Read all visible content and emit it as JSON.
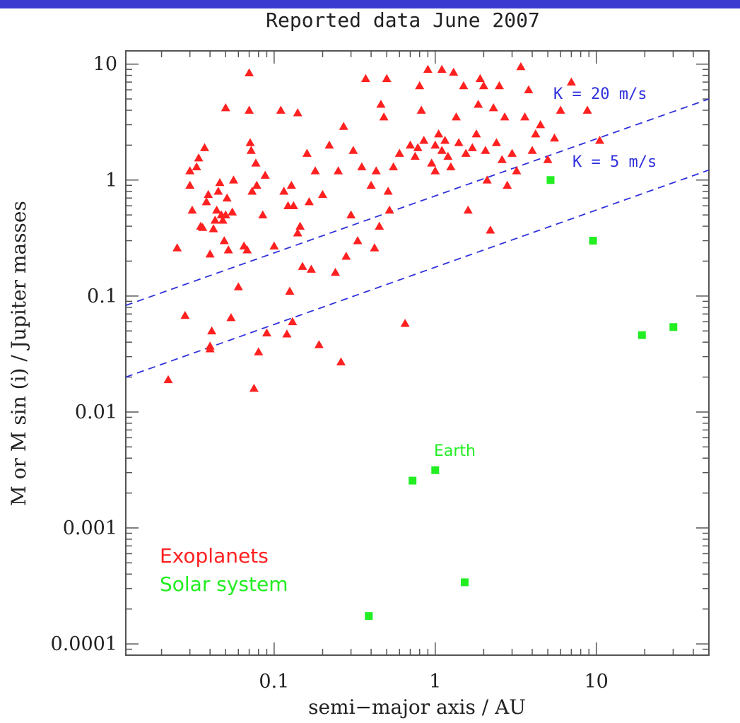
{
  "chart_data": {
    "type": "scatter",
    "title": "Reported data June 2007",
    "xlabel": "semi−major axis / AU",
    "ylabel": "M or M sin (i) / Jupiter masses",
    "x_scale": "log",
    "y_scale": "log",
    "xlim": [
      0.012,
      50
    ],
    "ylim": [
      8e-05,
      13
    ],
    "x_ticks": [
      {
        "value": 0.1,
        "label": "0.1"
      },
      {
        "value": 1,
        "label": "1"
      },
      {
        "value": 10,
        "label": "10"
      }
    ],
    "y_ticks": [
      {
        "value": 10,
        "label": "10"
      },
      {
        "value": 1,
        "label": "1"
      },
      {
        "value": 0.1,
        "label": "0.1"
      },
      {
        "value": 0.01,
        "label": "0.01"
      },
      {
        "value": 0.001,
        "label": "0.001"
      },
      {
        "value": 0.0001,
        "label": "0.0001"
      }
    ],
    "grid": false,
    "legend": {
      "placement": "bottom-left",
      "entries": [
        {
          "label": "Exoplanets",
          "color": "#ff2020"
        },
        {
          "label": "Solar system",
          "color": "#22ee22"
        }
      ]
    },
    "lines": [
      {
        "label": "K = 20 m/s",
        "color": "#3030dd",
        "style": "dashed",
        "points": [
          [
            0.012,
            0.083
          ],
          [
            50,
            5.0
          ]
        ]
      },
      {
        "label": "K = 5 m/s",
        "color": "#3030dd",
        "style": "dashed",
        "points": [
          [
            0.012,
            0.02
          ],
          [
            50,
            1.22
          ]
        ]
      }
    ],
    "annotations": [
      {
        "text": "Earth",
        "x": 1.0,
        "y": 0.0031,
        "color": "#22ee22"
      }
    ],
    "series": [
      {
        "name": "Exoplanets",
        "marker": "triangle",
        "color": "#ff2020",
        "points": [
          [
            0.022,
            0.019
          ],
          [
            0.025,
            0.26
          ],
          [
            0.028,
            0.068
          ],
          [
            0.03,
            1.2
          ],
          [
            0.03,
            0.9
          ],
          [
            0.031,
            0.55
          ],
          [
            0.033,
            1.3
          ],
          [
            0.034,
            1.55
          ],
          [
            0.035,
            0.4
          ],
          [
            0.036,
            0.39
          ],
          [
            0.037,
            1.9
          ],
          [
            0.038,
            0.65
          ],
          [
            0.039,
            0.75
          ],
          [
            0.04,
            0.035
          ],
          [
            0.04,
            0.037
          ],
          [
            0.04,
            0.23
          ],
          [
            0.041,
            0.05
          ],
          [
            0.042,
            0.38
          ],
          [
            0.043,
            0.45
          ],
          [
            0.044,
            0.55
          ],
          [
            0.045,
            0.8
          ],
          [
            0.046,
            0.95
          ],
          [
            0.047,
            0.5
          ],
          [
            0.048,
            0.45
          ],
          [
            0.049,
            0.3
          ],
          [
            0.05,
            4.2
          ],
          [
            0.05,
            0.5
          ],
          [
            0.051,
            0.7
          ],
          [
            0.052,
            0.25
          ],
          [
            0.054,
            0.065
          ],
          [
            0.055,
            0.53
          ],
          [
            0.056,
            1.0
          ],
          [
            0.06,
            0.12
          ],
          [
            0.065,
            0.27
          ],
          [
            0.068,
            0.25
          ],
          [
            0.07,
            8.4
          ],
          [
            0.07,
            4.0
          ],
          [
            0.071,
            2.1
          ],
          [
            0.072,
            1.8
          ],
          [
            0.073,
            0.8
          ],
          [
            0.075,
            0.016
          ],
          [
            0.077,
            1.4
          ],
          [
            0.078,
            0.9
          ],
          [
            0.08,
            0.033
          ],
          [
            0.085,
            0.5
          ],
          [
            0.088,
            1.1
          ],
          [
            0.09,
            0.048
          ],
          [
            0.1,
            0.27
          ],
          [
            0.11,
            4.0
          ],
          [
            0.115,
            0.8
          ],
          [
            0.12,
            0.047
          ],
          [
            0.122,
            0.6
          ],
          [
            0.125,
            0.11
          ],
          [
            0.128,
            0.9
          ],
          [
            0.13,
            0.06
          ],
          [
            0.132,
            0.6
          ],
          [
            0.14,
            3.8
          ],
          [
            0.14,
            0.35
          ],
          [
            0.145,
            0.4
          ],
          [
            0.15,
            0.18
          ],
          [
            0.16,
            1.7
          ],
          [
            0.165,
            0.65
          ],
          [
            0.17,
            0.17
          ],
          [
            0.18,
            1.2
          ],
          [
            0.19,
            0.038
          ],
          [
            0.2,
            0.75
          ],
          [
            0.22,
            2.0
          ],
          [
            0.24,
            0.16
          ],
          [
            0.25,
            1.2
          ],
          [
            0.26,
            0.027
          ],
          [
            0.27,
            2.9
          ],
          [
            0.28,
            0.22
          ],
          [
            0.3,
            0.5
          ],
          [
            0.31,
            1.8
          ],
          [
            0.33,
            0.3
          ],
          [
            0.35,
            1.3
          ],
          [
            0.37,
            7.5
          ],
          [
            0.4,
            0.9
          ],
          [
            0.42,
            0.26
          ],
          [
            0.43,
            1.2
          ],
          [
            0.45,
            0.4
          ],
          [
            0.46,
            4.5
          ],
          [
            0.48,
            3.5
          ],
          [
            0.5,
            7.5
          ],
          [
            0.51,
            0.8
          ],
          [
            0.52,
            0.55
          ],
          [
            0.55,
            1.3
          ],
          [
            0.6,
            1.7
          ],
          [
            0.65,
            0.058
          ],
          [
            0.7,
            2.0
          ],
          [
            0.75,
            1.6
          ],
          [
            0.78,
            1.9
          ],
          [
            0.8,
            6.5
          ],
          [
            0.82,
            4.0
          ],
          [
            0.85,
            2.2
          ],
          [
            0.9,
            9.0
          ],
          [
            0.95,
            1.4
          ],
          [
            1.0,
            2.0
          ],
          [
            1.0,
            1.2
          ],
          [
            1.05,
            2.5
          ],
          [
            1.1,
            1.8
          ],
          [
            1.1,
            9.0
          ],
          [
            1.15,
            2.2
          ],
          [
            1.2,
            1.6
          ],
          [
            1.25,
            1.3
          ],
          [
            1.3,
            8.5
          ],
          [
            1.35,
            3.5
          ],
          [
            1.4,
            2.1
          ],
          [
            1.5,
            6.5
          ],
          [
            1.55,
            1.7
          ],
          [
            1.6,
            0.55
          ],
          [
            1.7,
            1.9
          ],
          [
            1.8,
            2.5
          ],
          [
            1.85,
            4.5
          ],
          [
            1.9,
            7.5
          ],
          [
            2.0,
            6.5
          ],
          [
            2.05,
            1.8
          ],
          [
            2.1,
            1.0
          ],
          [
            2.2,
            0.37
          ],
          [
            2.3,
            4.2
          ],
          [
            2.4,
            2.1
          ],
          [
            2.5,
            6.5
          ],
          [
            2.6,
            1.5
          ],
          [
            2.7,
            3.5
          ],
          [
            2.8,
            0.9
          ],
          [
            3.0,
            1.7
          ],
          [
            3.2,
            1.2
          ],
          [
            3.4,
            9.5
          ],
          [
            3.6,
            3.5
          ],
          [
            3.8,
            6.0
          ],
          [
            4.0,
            1.8
          ],
          [
            4.2,
            2.5
          ],
          [
            4.5,
            3.0
          ],
          [
            5.0,
            1.5
          ],
          [
            5.5,
            2.3
          ],
          [
            6.0,
            4.0
          ],
          [
            7.0,
            7.0
          ],
          [
            8.8,
            4.0
          ],
          [
            10.5,
            2.2
          ]
        ]
      },
      {
        "name": "Solar system",
        "marker": "square",
        "color": "#22ee22",
        "points": [
          [
            0.387,
            0.000174
          ],
          [
            0.723,
            0.00256
          ],
          [
            1.0,
            0.00315
          ],
          [
            1.524,
            0.00034
          ],
          [
            5.2,
            1.0
          ],
          [
            9.54,
            0.3
          ],
          [
            19.2,
            0.046
          ],
          [
            30.1,
            0.054
          ]
        ]
      }
    ]
  }
}
